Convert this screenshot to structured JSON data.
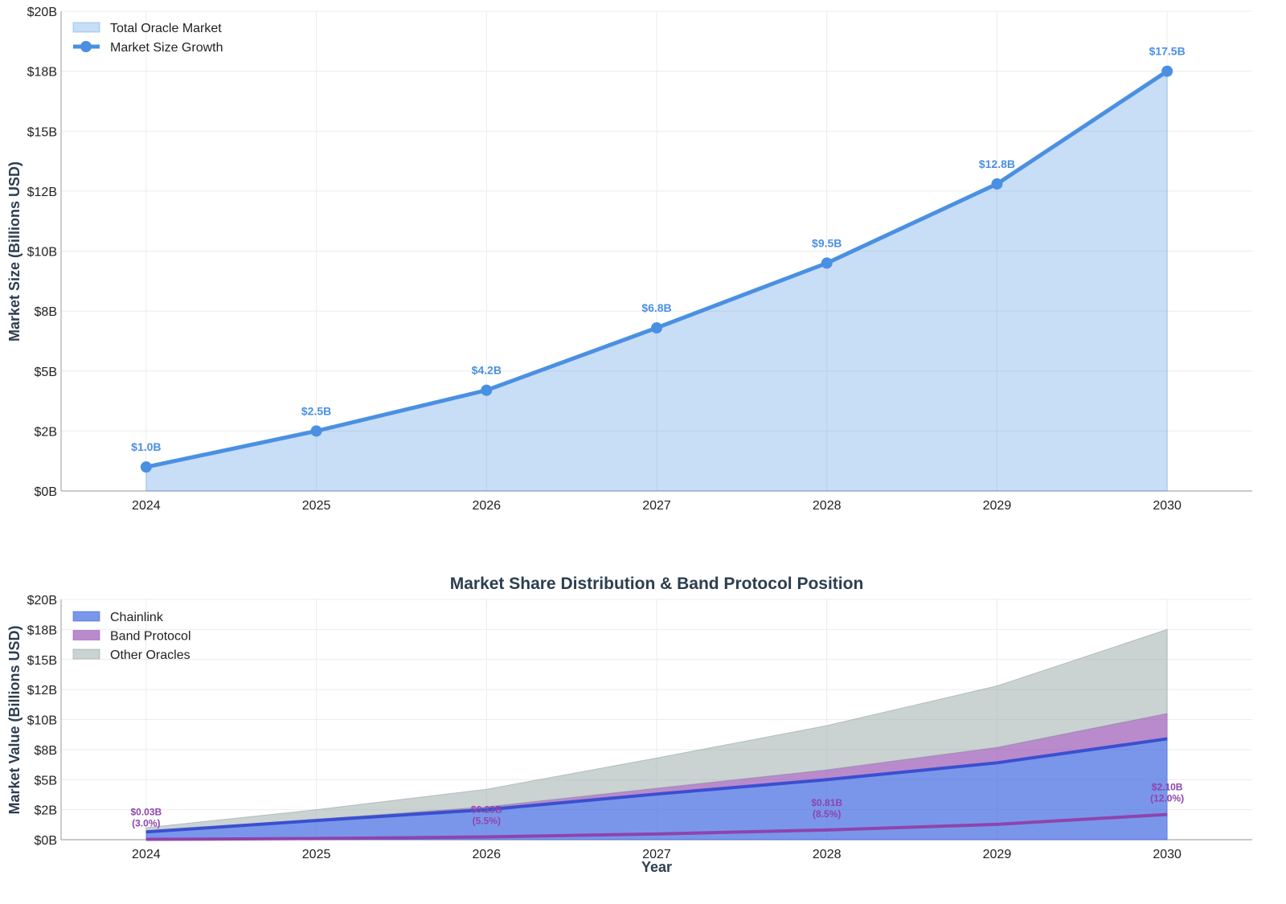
{
  "chart_data": [
    {
      "type": "area",
      "title": "",
      "xlabel": "",
      "ylabel": "Market Size (Billions USD)",
      "x": [
        2024,
        2025,
        2026,
        2027,
        2028,
        2029,
        2030
      ],
      "xlim": [
        2023.5,
        2030.5
      ],
      "ylim": [
        0,
        20
      ],
      "yticks": [
        0,
        2.5,
        5,
        7.5,
        10,
        12.5,
        15,
        17.5,
        20
      ],
      "ytick_labels": [
        "$0B",
        "$2B",
        "$5B",
        "$8B",
        "$10B",
        "$12B",
        "$15B",
        "$18B",
        "$20B"
      ],
      "xtick_labels": [
        "2024",
        "2025",
        "2026",
        "2027",
        "2028",
        "2029",
        "2030"
      ],
      "grid": true,
      "legend_position": "top-left",
      "series": [
        {
          "name": "Total Oracle Market",
          "kind": "area",
          "color": "#4a90e2",
          "values": [
            1.0,
            2.5,
            4.2,
            6.8,
            9.5,
            12.8,
            17.5
          ]
        },
        {
          "name": "Market Size Growth",
          "kind": "line-markers",
          "color": "#4a90e2",
          "values": [
            1.0,
            2.5,
            4.2,
            6.8,
            9.5,
            12.8,
            17.5
          ]
        }
      ],
      "data_labels": [
        "$1.0B",
        "$2.5B",
        "$4.2B",
        "$6.8B",
        "$9.5B",
        "$12.8B",
        "$17.5B"
      ]
    },
    {
      "type": "area",
      "title": "Market Share Distribution & Band Protocol Position",
      "xlabel": "Year",
      "ylabel": "Market Value (Billions USD)",
      "x": [
        2024,
        2025,
        2026,
        2027,
        2028,
        2029,
        2030
      ],
      "xlim": [
        2023.5,
        2030.5
      ],
      "ylim": [
        0,
        20
      ],
      "yticks": [
        0,
        2.5,
        5,
        7.5,
        10,
        12.5,
        15,
        17.5,
        20
      ],
      "ytick_labels": [
        "$0B",
        "$2B",
        "$5B",
        "$8B",
        "$10B",
        "$12B",
        "$15B",
        "$18B",
        "$20B"
      ],
      "xtick_labels": [
        "2024",
        "2025",
        "2026",
        "2027",
        "2028",
        "2029",
        "2030"
      ],
      "grid": true,
      "stacked": true,
      "legend_position": "top-left",
      "series": [
        {
          "name": "Chainlink",
          "color": "#4169e1",
          "values": [
            0.65,
            1.6,
            2.5,
            3.8,
            5.0,
            6.4,
            8.4
          ]
        },
        {
          "name": "Band Protocol",
          "color": "#9b59b6",
          "values": [
            0.03,
            0.1,
            0.23,
            0.48,
            0.81,
            1.28,
            2.1
          ]
        },
        {
          "name": "Other Oracles",
          "color": "#95a5a6",
          "values": [
            0.32,
            0.8,
            1.47,
            2.52,
            3.69,
            5.12,
            7.0
          ]
        }
      ],
      "annotations": [
        {
          "x": 2024,
          "value": 0.03,
          "text": "$0.03B",
          "share": "(3.0%)"
        },
        {
          "x": 2026,
          "value": 0.23,
          "text": "$0.23B",
          "share": "(5.5%)"
        },
        {
          "x": 2028,
          "value": 0.81,
          "text": "$0.81B",
          "share": "(8.5%)"
        },
        {
          "x": 2030,
          "value": 2.1,
          "text": "$2.10B",
          "share": "(12.0%)"
        }
      ]
    }
  ]
}
